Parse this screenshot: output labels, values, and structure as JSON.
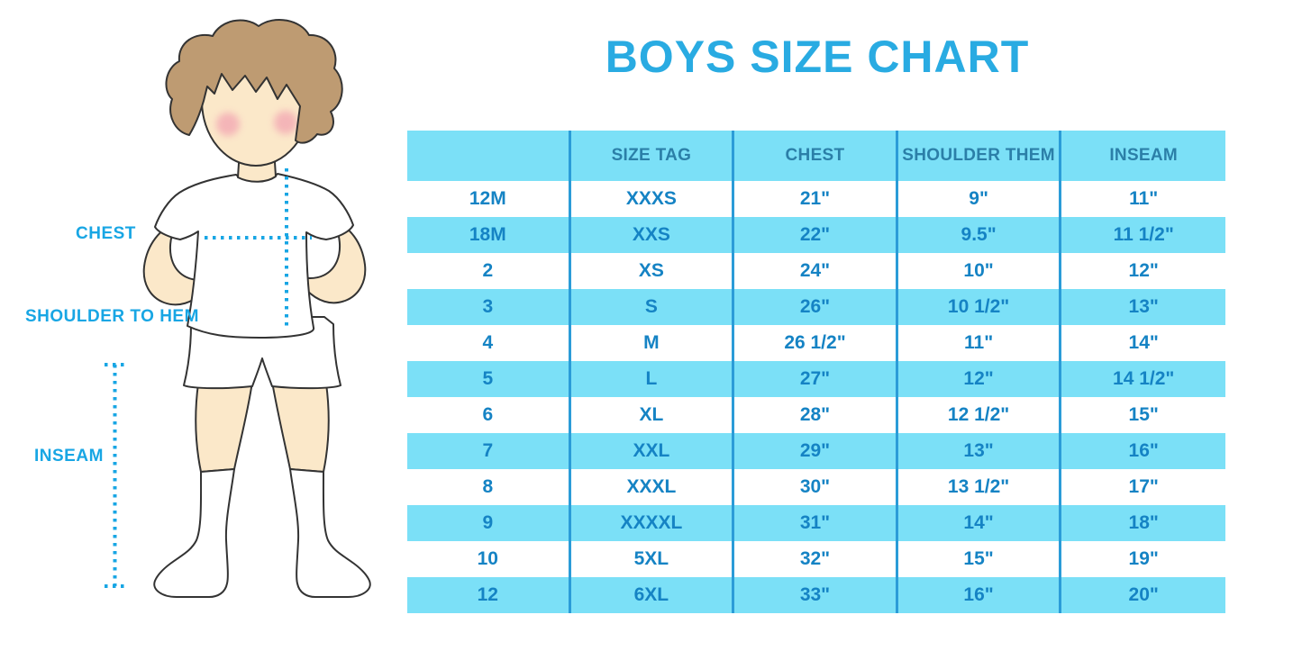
{
  "title": "BOYS SIZE CHART",
  "colors": {
    "title_blue": "#29ABE2",
    "label_blue": "#18A6E4",
    "row_cyan": "#7BE0F7",
    "divider_blue": "#2B9CD8",
    "header_text": "#2B7FA8",
    "cell_text": "#1583C4",
    "skin": "#FBE8C9",
    "hair": "#BE9B72",
    "cheek": "#F3A9B4"
  },
  "figure": {
    "chest_label": "CHEST",
    "shoulder_label": "SHOULDER TO HEM",
    "inseam_label": "INSEAM"
  },
  "chart_data": {
    "type": "table",
    "title": "BOYS SIZE CHART",
    "columns": [
      "",
      "SIZE TAG",
      "CHEST",
      "SHOULDER THEM",
      "INSEAM"
    ],
    "rows": [
      [
        "12M",
        "XXXS",
        "21\"",
        "9\"",
        "11\""
      ],
      [
        "18M",
        "XXS",
        "22\"",
        "9.5\"",
        "11 1/2\""
      ],
      [
        "2",
        "XS",
        "24\"",
        "10\"",
        "12\""
      ],
      [
        "3",
        "S",
        "26\"",
        "10 1/2\"",
        "13\""
      ],
      [
        "4",
        "M",
        "26 1/2\"",
        "11\"",
        "14\""
      ],
      [
        "5",
        "L",
        "27\"",
        "12\"",
        "14 1/2\""
      ],
      [
        "6",
        "XL",
        "28\"",
        "12 1/2\"",
        "15\""
      ],
      [
        "7",
        "XXL",
        "29\"",
        "13\"",
        "16\""
      ],
      [
        "8",
        "XXXL",
        "30\"",
        "13 1/2\"",
        "17\""
      ],
      [
        "9",
        "XXXXL",
        "31\"",
        "14\"",
        "18\""
      ],
      [
        "10",
        "5XL",
        "32\"",
        "15\"",
        "19\""
      ],
      [
        "12",
        "6XL",
        "33\"",
        "16\"",
        "20\""
      ]
    ]
  }
}
